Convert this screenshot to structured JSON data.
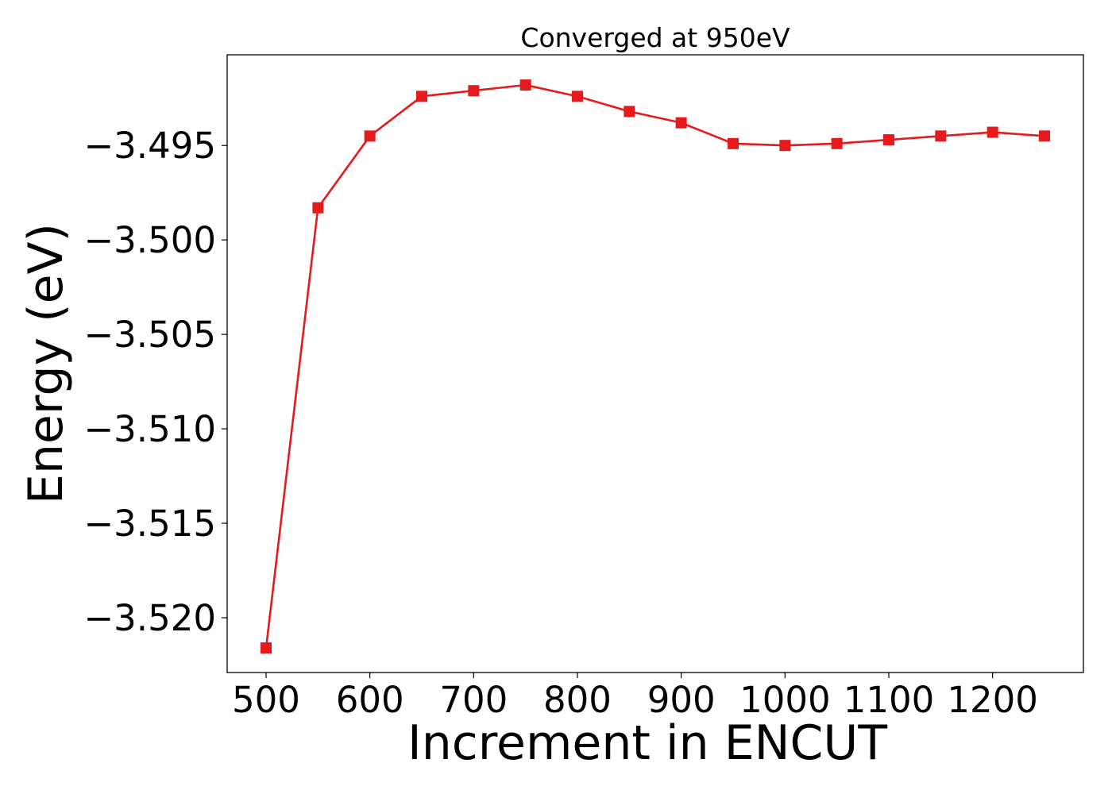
{
  "chart_data": {
    "type": "line",
    "title": "Converged at 950eV",
    "xlabel": "Increment in ENCUT",
    "ylabel": "Energy (eV)",
    "x": [
      500,
      550,
      600,
      650,
      700,
      750,
      800,
      850,
      900,
      950,
      1000,
      1050,
      1100,
      1150,
      1200,
      1250
    ],
    "series": [
      {
        "values": [
          -3.5216,
          -3.4983,
          -3.4945,
          -3.4924,
          -3.4921,
          -3.4918,
          -3.4924,
          -3.4932,
          -3.4938,
          -3.4949,
          -3.495,
          -3.4949,
          -3.4947,
          -3.4945,
          -3.4943,
          -3.4945
        ],
        "color": "#e41a1c",
        "marker": "square"
      }
    ],
    "xlim": [
      462.5,
      1287.5
    ],
    "ylim": [
      -3.5229,
      -3.4902
    ],
    "xticks": [
      500,
      600,
      700,
      800,
      900,
      1000,
      1100,
      1200
    ],
    "xtick_labels": [
      "500",
      "600",
      "700",
      "800",
      "900",
      "1000",
      "1100",
      "1200"
    ],
    "yticks": [
      -3.495,
      -3.5,
      -3.505,
      -3.51,
      -3.515,
      -3.52
    ],
    "ytick_labels": [
      "−3.495",
      "−3.500",
      "−3.505",
      "−3.510",
      "−3.515",
      "−3.520"
    ],
    "grid": false,
    "legend": "none"
  }
}
